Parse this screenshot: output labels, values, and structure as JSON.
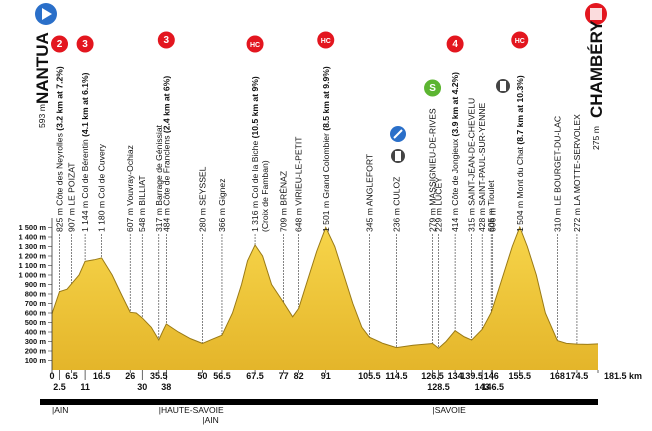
{
  "chart_data": {
    "type": "area",
    "color": "#f2c935",
    "start": {
      "name": "NANTUA",
      "altitude": "593 m"
    },
    "finish": {
      "name": "CHAMBÉRY",
      "altitude": "275 m"
    },
    "x": [
      0,
      2.5,
      5,
      6.5,
      9,
      11,
      14,
      16.5,
      20,
      23,
      26,
      28,
      30,
      33,
      35.5,
      37,
      38,
      42,
      46,
      50,
      53,
      56.5,
      60,
      63,
      65,
      67.5,
      70,
      73,
      77,
      80,
      82,
      85,
      88,
      91,
      94,
      97,
      100,
      103,
      105.5,
      110,
      114.5,
      120,
      126.5,
      128.5,
      131,
      134,
      137,
      139.5,
      143,
      146,
      148,
      151,
      153,
      155.5,
      158,
      161,
      164,
      168,
      171,
      174.5,
      178,
      181.5
    ],
    "values": [
      593,
      825,
      850,
      907,
      1000,
      1144,
      1160,
      1180,
      1000,
      800,
      607,
      600,
      548,
      450,
      317,
      420,
      484,
      400,
      330,
      280,
      320,
      366,
      600,
      900,
      1150,
      1316,
      1200,
      900,
      709,
      560,
      648,
      950,
      1250,
      1501,
      1300,
      1000,
      700,
      450,
      345,
      280,
      236,
      260,
      279,
      229,
      300,
      414,
      350,
      315,
      428,
      605,
      800,
      1100,
      1300,
      1504,
      1300,
      1000,
      600,
      310,
      280,
      272,
      270,
      275
    ],
    "xlim": [
      0,
      181.5
    ],
    "ylim": [
      0,
      1600
    ],
    "xticks": [
      0,
      2.5,
      6.5,
      11,
      16.5,
      26,
      30,
      35.5,
      38,
      50,
      56.5,
      67.5,
      77,
      82,
      91,
      105.5,
      114.5,
      126.5,
      128.5,
      134,
      139.5,
      143,
      146,
      146.5,
      155.5,
      168,
      174.5,
      {
        "value": 181.5,
        "label": "181.5 km"
      }
    ],
    "yticks": [
      {
        "value": 100,
        "label": "100 m"
      },
      {
        "value": 200,
        "label": "200 m"
      },
      {
        "value": 300,
        "label": "300 m"
      },
      {
        "value": 400,
        "label": "400 m"
      },
      {
        "value": 500,
        "label": "500 m"
      },
      {
        "value": 600,
        "label": "600 m"
      },
      {
        "value": 700,
        "label": "700 m"
      },
      {
        "value": 800,
        "label": "800 m"
      },
      {
        "value": 900,
        "label": "900 m"
      },
      {
        "value": 1000,
        "label": "1 000 m"
      },
      {
        "value": 1100,
        "label": "1 100 m"
      },
      {
        "value": 1200,
        "label": "1 200 m"
      },
      {
        "value": 1300,
        "label": "1 300 m"
      },
      {
        "value": 1400,
        "label": "1 400 m"
      },
      {
        "value": 1500,
        "label": "1 500 m"
      }
    ],
    "waypoints": [
      {
        "km": 2.5,
        "text": "825 m Côte des Neyrolles",
        "detail": "(3.2 km at 7.2%)",
        "badge": "2"
      },
      {
        "km": 6.5,
        "text": "907 m LE POIZAT"
      },
      {
        "km": 11,
        "text": "1 144 m Col de Bérentin",
        "detail": "(4.1 km at 6.1%)",
        "badge": "3"
      },
      {
        "km": 16.5,
        "text": "1 180 m Col de Cuvery"
      },
      {
        "km": 26,
        "text": "607 m Vouvray-Ochiaz"
      },
      {
        "km": 30,
        "text": "548 m BILLIAT"
      },
      {
        "km": 35.5,
        "text": "317 m Barrage de Génissiat"
      },
      {
        "km": 38,
        "text": "484 m Côte de Franclens",
        "detail": "(2.4 km at 6%)",
        "badge": "3"
      },
      {
        "km": 50,
        "text": "280 m SEYSSEL"
      },
      {
        "km": 56.5,
        "text": "366 m Gignez"
      },
      {
        "km": 67.5,
        "text": "1 316 m Col de la Biche",
        "detail": "(10.5 km at 9%)",
        "badge": "HC"
      },
      {
        "km": 77,
        "text": "709 m BRÉNAZ"
      },
      {
        "km": 82,
        "text": "648 m VIRIEU-LE-PETIT"
      },
      {
        "km": 91,
        "text": "1 501 m Grand Colombier",
        "detail": "(8.5 km at 9.9%)",
        "badge": "HC"
      },
      {
        "km": 105.5,
        "text": "345 m ANGLEFORT"
      },
      {
        "km": 114.5,
        "text": "236 m CULOZ"
      },
      {
        "km": 126.5,
        "text": "279 m MASSIGNIEU-DE-RIVES",
        "badge": "S"
      },
      {
        "km": 128.5,
        "text": "229 m LUCEY"
      },
      {
        "km": 134,
        "text": "414 m Côte de Jongieux",
        "detail": "(3.9 km at 4.2%)",
        "badge": "4"
      },
      {
        "km": 139.5,
        "text": "315 m SAINT-JEAN-DE-CHEVELU"
      },
      {
        "km": 143,
        "text": "428 m SAINT-PAUL-SUR-YENNE"
      },
      {
        "km": 146,
        "text": "605 m Tioulet"
      },
      {
        "km": 146.5,
        "text": "606 m"
      },
      {
        "km": 155.5,
        "text": "1 504 m Mont du Chat",
        "detail": "(8.7 km at 10.3%)",
        "badge": "HC"
      },
      {
        "km": 168,
        "text": "310 m LE BOURGET-DU-LAC"
      },
      {
        "km": 174.5,
        "text": "272 m LA MOTTE-SERVOLEX"
      }
    ],
    "subtitle_note": "(Croix de Famban)",
    "regions": [
      {
        "label": "|AIN",
        "km": 0
      },
      {
        "label": "|HAUTE-SAVOIE",
        "km": 35.5
      },
      {
        "label": "|AIN",
        "km": 50
      },
      {
        "label": "|SAVOIE",
        "km": 126.5
      }
    ]
  }
}
